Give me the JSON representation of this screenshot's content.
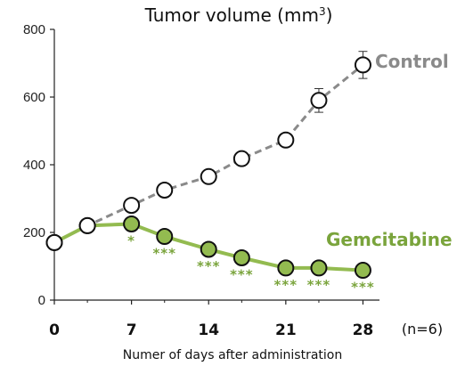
{
  "chart_data": {
    "type": "line",
    "title": "Tumor volume (mm",
    "title_sup": "3",
    "title_close": ")",
    "xlabel": "Numer of days after administration",
    "note": "(n=6)",
    "xlim": [
      0,
      29.5
    ],
    "ylim": [
      0,
      800
    ],
    "x_ticks": [
      0,
      7,
      14,
      21,
      28
    ],
    "y_ticks": [
      0,
      200,
      400,
      600,
      800
    ],
    "grid": false,
    "x": [
      0,
      3,
      7,
      10,
      14,
      17,
      21,
      24,
      28
    ],
    "series": [
      {
        "name": "Control",
        "color": "#8a8a8a",
        "marker_fill": "#ffffff",
        "dashed": true,
        "x": [
          0,
          3,
          7,
          10,
          14,
          17,
          21,
          24,
          28
        ],
        "values": [
          170,
          220,
          280,
          325,
          365,
          418,
          473,
          590,
          695
        ],
        "error": [
          0,
          0,
          0,
          0,
          0,
          0,
          0,
          35,
          40
        ]
      },
      {
        "name": "Gemcitabine",
        "color": "#93bb50",
        "marker_fill": "#93bb50",
        "dashed": false,
        "x": [
          0,
          3,
          7,
          10,
          14,
          17,
          21,
          24,
          28
        ],
        "values": [
          170,
          220,
          225,
          188,
          150,
          125,
          95,
          95,
          88
        ],
        "significance": [
          "",
          "",
          "*",
          "***",
          "***",
          "***",
          "***",
          "***",
          "***"
        ]
      }
    ]
  }
}
